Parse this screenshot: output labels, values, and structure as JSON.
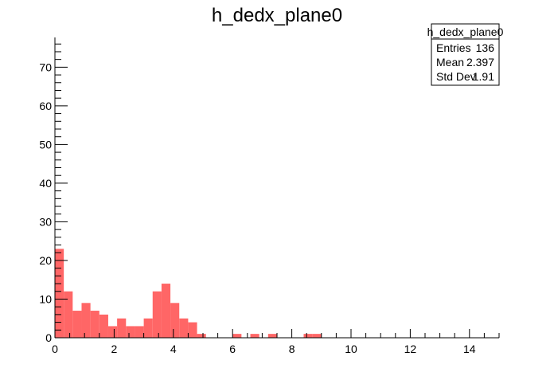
{
  "chart_data": {
    "type": "bar",
    "title": "h_dedx_plane0",
    "xlabel": "",
    "ylabel": "",
    "xlim": [
      0,
      15
    ],
    "ylim": [
      0,
      77.7
    ],
    "bin_width": 0.3,
    "bar_color": "#ff6666",
    "x_tick_labels": [
      "0",
      "2",
      "4",
      "6",
      "8",
      "10",
      "12",
      "14"
    ],
    "y_tick_labels": [
      "0",
      "10",
      "20",
      "30",
      "40",
      "50",
      "60",
      "70"
    ],
    "x_major_ticks": [
      0,
      2,
      4,
      6,
      8,
      10,
      12,
      14
    ],
    "y_major_ticks": [
      0,
      10,
      20,
      30,
      40,
      50,
      60,
      70
    ],
    "bin_edges_start": [
      0.0,
      0.3,
      0.6,
      0.9,
      1.2,
      1.5,
      1.8,
      2.1,
      2.4,
      2.7,
      3.0,
      3.3,
      3.6,
      3.9,
      4.2,
      4.5,
      4.8,
      5.1,
      5.4,
      5.7,
      6.0,
      6.3,
      6.6,
      6.9,
      7.2,
      7.5,
      7.8,
      8.1,
      8.4,
      8.7,
      9.0,
      9.3,
      9.6,
      9.9,
      10.2,
      10.5,
      10.8,
      11.1,
      11.4,
      11.7,
      12.0,
      12.3,
      12.6,
      12.9,
      13.2,
      13.5,
      13.8,
      14.1,
      14.4,
      14.7
    ],
    "values": [
      23,
      12,
      7,
      9,
      7,
      6,
      3,
      5,
      3,
      3,
      5,
      12,
      14,
      9,
      5,
      4,
      1,
      0,
      0,
      0,
      1,
      0,
      1,
      0,
      1,
      0,
      0,
      0,
      1,
      1,
      0,
      0,
      0,
      0,
      0,
      0,
      0,
      0,
      0,
      0,
      0,
      0,
      0,
      0,
      0,
      0,
      0,
      0,
      0,
      0
    ]
  },
  "stats_box": {
    "title": "h_dedx_plane0",
    "rows": [
      {
        "label": "Entries",
        "value": "136"
      },
      {
        "label": "Mean",
        "value": "2.397"
      },
      {
        "label": "Std Dev",
        "value": "1.91"
      }
    ]
  }
}
